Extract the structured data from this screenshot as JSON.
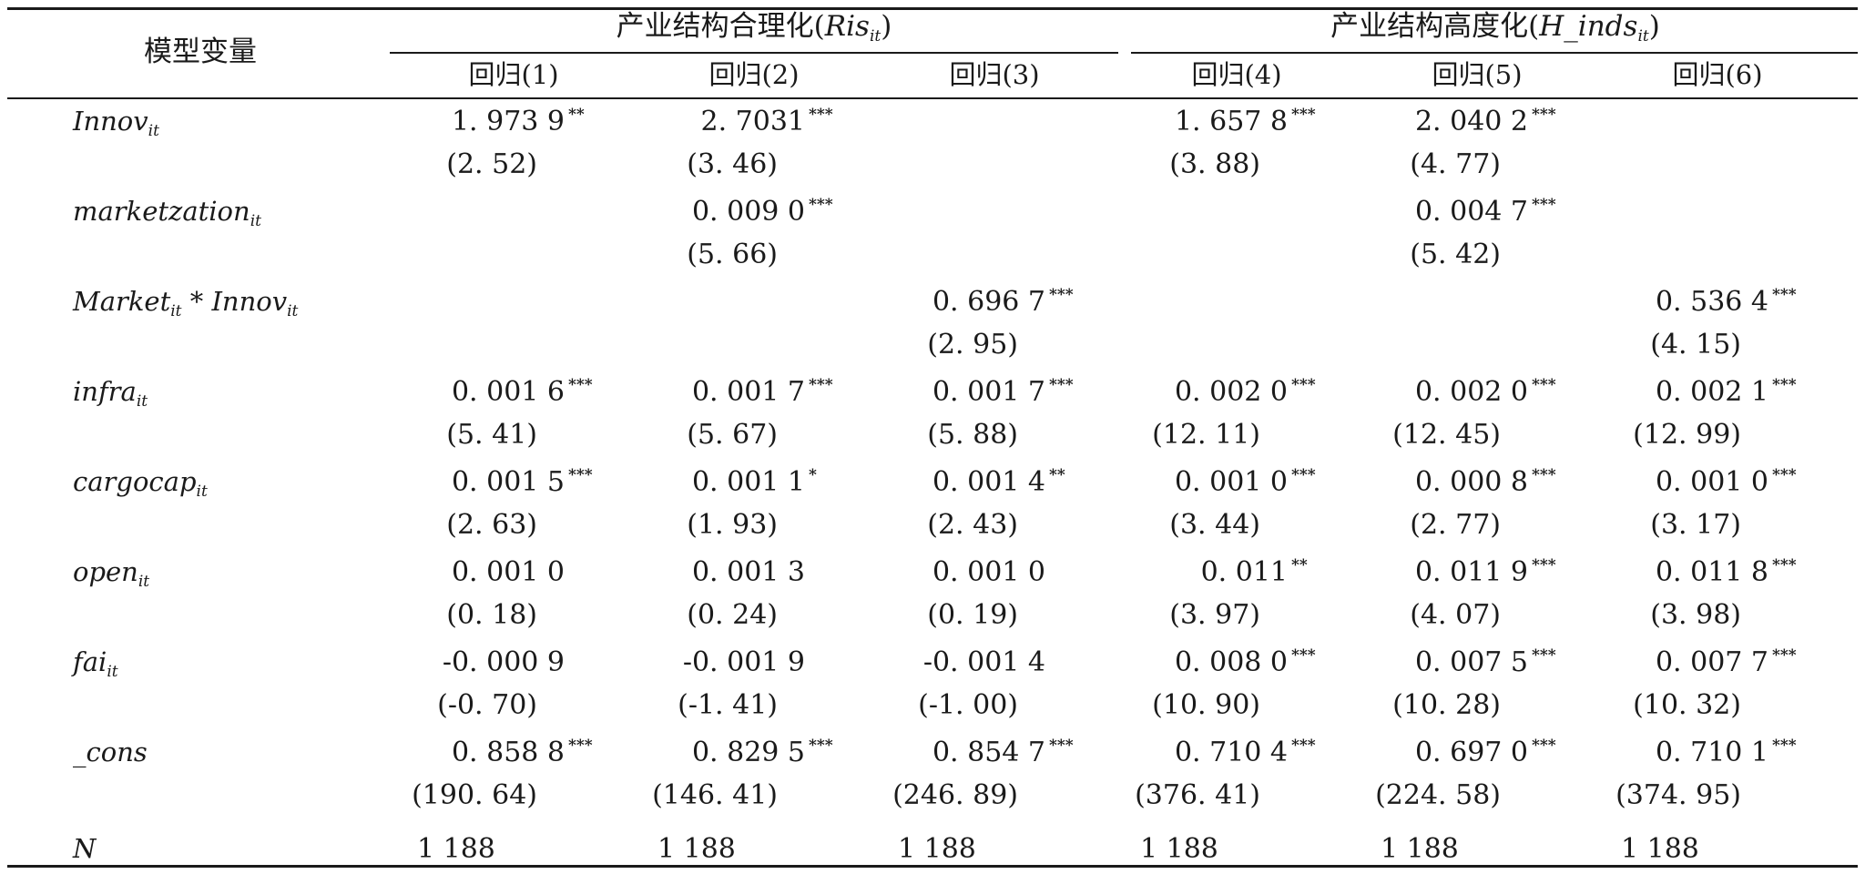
{
  "header": {
    "model_variable": "模型变量",
    "group1_prefix": "产业结构合理化(",
    "group1_var": "Ris",
    "group1_sub": "it",
    "group1_suffix": ")",
    "group2_prefix": "产业结构高度化(",
    "group2_var": "H_inds",
    "group2_sub": "it",
    "group2_suffix": ")",
    "regressions": [
      "回归(1)",
      "回归(2)",
      "回归(3)",
      "回归(4)",
      "回归(5)",
      "回归(6)"
    ]
  },
  "rows": [
    {
      "var": "Innov",
      "sub": "it",
      "coef": [
        [
          "1. 973 9",
          "**"
        ],
        [
          "2. 7031",
          "***"
        ],
        [
          "",
          ""
        ],
        [
          "1. 657 8",
          "***"
        ],
        [
          "2. 040 2",
          "***"
        ],
        [
          "",
          ""
        ]
      ],
      "tstat": [
        "(2. 52)",
        "(3. 46)",
        "",
        "(3. 88)",
        "(4. 77)",
        ""
      ]
    },
    {
      "var": "marketzation",
      "sub": "it",
      "coef": [
        [
          "",
          ""
        ],
        [
          "0. 009 0",
          "***"
        ],
        [
          "",
          ""
        ],
        [
          "",
          ""
        ],
        [
          "0. 004 7",
          "***"
        ],
        [
          "",
          ""
        ]
      ],
      "tstat": [
        "",
        "(5. 66)",
        "",
        "",
        "(5. 42)",
        ""
      ]
    },
    {
      "var": "Market",
      "sub": "it",
      "mid": " * ",
      "var2": "Innov",
      "sub2": "it",
      "coef": [
        [
          "",
          ""
        ],
        [
          "",
          ""
        ],
        [
          "0. 696 7",
          "***"
        ],
        [
          "",
          ""
        ],
        [
          "",
          ""
        ],
        [
          "0. 536 4",
          "***"
        ]
      ],
      "tstat": [
        "",
        "",
        "(2. 95)",
        "",
        "",
        "(4. 15)"
      ]
    },
    {
      "var": "infra",
      "sub": "it",
      "coef": [
        [
          "0. 001 6",
          "***"
        ],
        [
          "0. 001 7",
          "***"
        ],
        [
          "0. 001 7",
          "***"
        ],
        [
          "0. 002 0",
          "***"
        ],
        [
          "0. 002 0",
          "***"
        ],
        [
          "0. 002 1",
          "***"
        ]
      ],
      "tstat": [
        "(5. 41)",
        "(5. 67)",
        "(5. 88)",
        "(12. 11)",
        "(12. 45)",
        "(12. 99)"
      ]
    },
    {
      "var": "cargocap",
      "sub": "it",
      "coef": [
        [
          "0. 001 5",
          "***"
        ],
        [
          "0. 001 1",
          "*"
        ],
        [
          "0. 001 4",
          "**"
        ],
        [
          "0. 001 0",
          "***"
        ],
        [
          "0. 000 8",
          "***"
        ],
        [
          "0. 001 0",
          "***"
        ]
      ],
      "tstat": [
        "(2. 63)",
        "(1. 93)",
        "(2. 43)",
        "(3. 44)",
        "(2. 77)",
        "(3. 17)"
      ]
    },
    {
      "var": "open",
      "sub": "it",
      "coef": [
        [
          "0. 001 0",
          ""
        ],
        [
          "0. 001 3",
          ""
        ],
        [
          "0. 001 0",
          ""
        ],
        [
          "0. 011",
          "**"
        ],
        [
          "0. 011 9",
          "***"
        ],
        [
          "0. 011 8",
          "***"
        ]
      ],
      "tstat": [
        "(0. 18)",
        "(0. 24)",
        "(0. 19)",
        "(3. 97)",
        "(4. 07)",
        "(3. 98)"
      ]
    },
    {
      "var": "fai",
      "sub": "it",
      "coef": [
        [
          "-0. 000 9",
          ""
        ],
        [
          "-0. 001 9",
          ""
        ],
        [
          "-0. 001 4",
          ""
        ],
        [
          "0. 008 0",
          "***"
        ],
        [
          "0. 007 5",
          "***"
        ],
        [
          "0. 007 7",
          "***"
        ]
      ],
      "tstat": [
        "(-0. 70)",
        "(-1. 41)",
        "(-1. 00)",
        "(10. 90)",
        "(10. 28)",
        "(10. 32)"
      ]
    },
    {
      "var": "_cons",
      "sub": "",
      "coef": [
        [
          "0. 858 8",
          "***"
        ],
        [
          "0. 829 5",
          "***"
        ],
        [
          "0. 854 7",
          "***"
        ],
        [
          "0. 710 4",
          "***"
        ],
        [
          "0. 697 0",
          "***"
        ],
        [
          "0. 710 1",
          "***"
        ]
      ],
      "tstat": [
        "(190. 64)",
        "(146. 41)",
        "(246. 89)",
        "(376. 41)",
        "(224. 58)",
        "(374. 95)"
      ]
    }
  ],
  "n_row": {
    "var": "N",
    "values": [
      "1 188",
      "1 188",
      "1 188",
      "1 188",
      "1 188",
      "1 188"
    ]
  }
}
